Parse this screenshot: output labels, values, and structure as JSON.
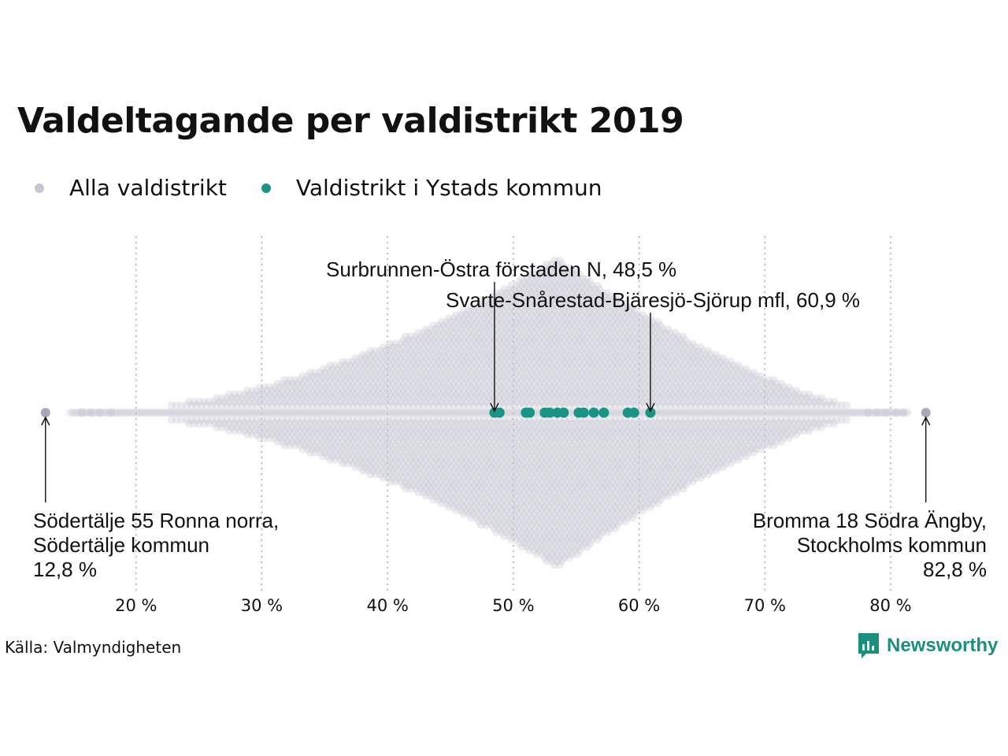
{
  "title": "Valdeltagande per valdistrikt 2019",
  "legend": [
    {
      "label": "Alla valdistrikt",
      "color": "#c7c6d4"
    },
    {
      "label": "Valdistrikt i Ystads kommun",
      "color": "#1a9585"
    }
  ],
  "source": "Källa: Valmyndigheten",
  "brand": {
    "name": "Newsworthy",
    "icon": "newsworthy-logo-icon"
  },
  "chart_data": {
    "type": "scatter",
    "subtype": "beeswarm",
    "xlim": [
      12,
      84
    ],
    "x_ticks": [
      {
        "value": 20,
        "label": "20 %"
      },
      {
        "value": 30,
        "label": "30 %"
      },
      {
        "value": 40,
        "label": "40 %"
      },
      {
        "value": 50,
        "label": "50 %"
      },
      {
        "value": 60,
        "label": "60 %"
      },
      {
        "value": 70,
        "label": "70 %"
      },
      {
        "value": 80,
        "label": "80 %"
      }
    ],
    "grid": "vertical-dotted",
    "legend_position": "top-left",
    "all_districts": {
      "color": "#c7c6d4",
      "min": 12.8,
      "max": 82.8,
      "peak": 53.5
    },
    "ystad": {
      "color": "#1a9585",
      "values": [
        48.5,
        48.9,
        51.0,
        51.3,
        52.5,
        52.9,
        53.5,
        54.0,
        55.2,
        55.6,
        56.4,
        57.2,
        59.1,
        59.6,
        60.9
      ]
    },
    "annotations": [
      {
        "lines": [
          "Surbrunnen-Östra förstaden N, 48,5 %"
        ],
        "value": 48.5,
        "side": "top"
      },
      {
        "lines": [
          "Svarte-Snårestad-Bjäresjö-Sjörup mfl, 60,9 %"
        ],
        "value": 60.9,
        "side": "top"
      },
      {
        "lines": [
          "Södertälje 55 Ronna norra,",
          "Södertälje kommun",
          "12,8 %"
        ],
        "value": 12.8,
        "side": "bottom-left"
      },
      {
        "lines": [
          "Bromma 18 Södra Ängby,",
          "Stockholms kommun",
          "82,8 %"
        ],
        "value": 82.8,
        "side": "bottom-right"
      }
    ]
  }
}
